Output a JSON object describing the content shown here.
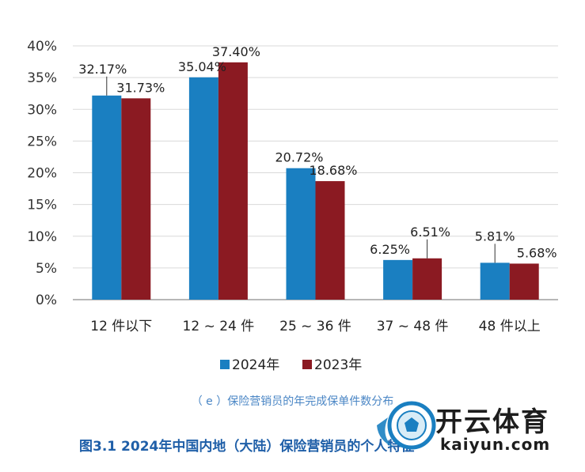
{
  "chart_data": {
    "type": "bar",
    "categories": [
      "12 件以下",
      "12 ~ 24 件",
      "25 ~ 36 件",
      "37 ~ 48 件",
      "48 件以上"
    ],
    "series": [
      {
        "name": "2024年",
        "values": [
          32.17,
          35.04,
          20.72,
          6.25,
          5.81
        ],
        "labels": [
          "32.17%",
          "35.04%",
          "20.72%",
          "6.25%",
          "5.81%"
        ],
        "color": "#1a7fc1"
      },
      {
        "name": "2023年",
        "values": [
          31.73,
          37.4,
          18.68,
          6.51,
          5.68
        ],
        "labels": [
          "31.73%",
          "37.40%",
          "18.68%",
          "6.51%",
          "5.68%"
        ],
        "color": "#8b1a22"
      }
    ],
    "ylim": [
      0,
      40
    ],
    "yticks": [
      "0%",
      "5%",
      "10%",
      "15%",
      "20%",
      "25%",
      "30%",
      "35%",
      "40%"
    ],
    "grid": true,
    "legend": "bottom",
    "subtitle": "（ e ）保险营销员的年完成保单件数分布",
    "title": "图3.1 2024年中国内地（大陆）保险营销员的个人特征"
  },
  "watermark": {
    "text": "开云体育",
    "url": "kaiyun.com"
  }
}
